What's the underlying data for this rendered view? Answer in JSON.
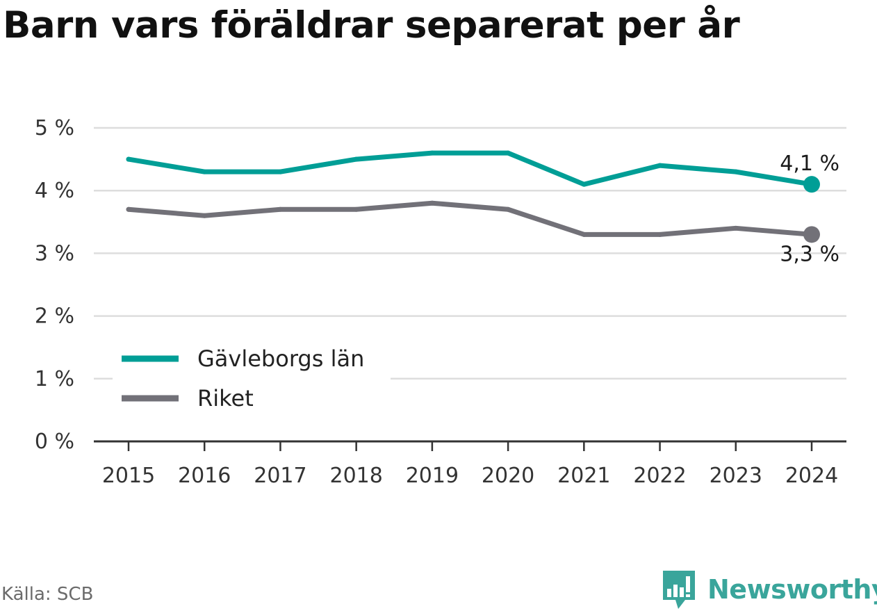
{
  "chart_data": {
    "type": "line",
    "title": "Barn vars föräldrar separerat per år",
    "x": [
      2015,
      2016,
      2017,
      2018,
      2019,
      2020,
      2021,
      2022,
      2023,
      2024
    ],
    "ylim": [
      0,
      5
    ],
    "y_ticks": [
      0,
      1,
      2,
      3,
      4,
      5
    ],
    "y_tick_labels": [
      "0 %",
      "1 %",
      "2 %",
      "3 %",
      "4 %",
      "5 %"
    ],
    "y_unit": "%",
    "grid": true,
    "legend_position": "bottom-left",
    "series": [
      {
        "name": "Gävleborgs län",
        "color": "#009e96",
        "values": [
          4.5,
          4.3,
          4.3,
          4.5,
          4.6,
          4.6,
          4.1,
          4.4,
          4.3,
          4.1
        ],
        "end_label": "4,1 %"
      },
      {
        "name": "Riket",
        "color": "#727178",
        "values": [
          3.7,
          3.6,
          3.7,
          3.7,
          3.8,
          3.7,
          3.3,
          3.3,
          3.4,
          3.3
        ],
        "end_label": "3,3 %"
      }
    ]
  },
  "footer": {
    "source": "Källa: SCB",
    "brand_name": "Newsworthy",
    "brand_icon": "newsworthy-bar-chart-logo-icon",
    "brand_color": "#3aa59b"
  }
}
